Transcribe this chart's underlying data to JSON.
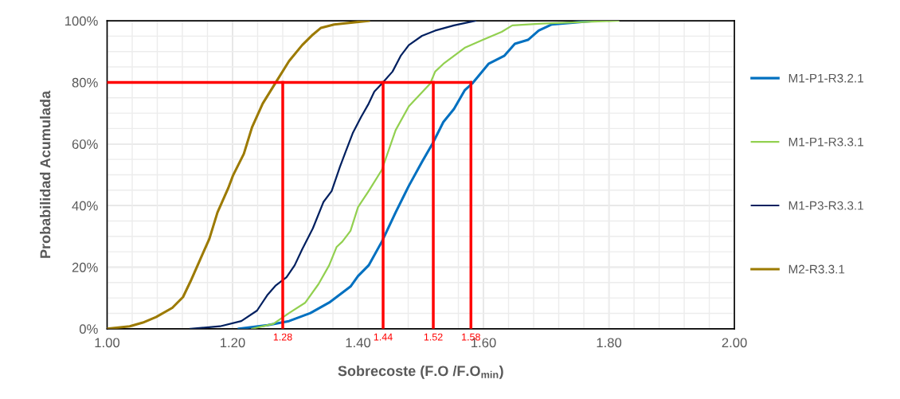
{
  "chart_data": {
    "type": "line",
    "xlabel": "Sobrecoste (F.O /F.O$_{min}$)",
    "ylabel": "Probabilidad Acumulada",
    "xlim": [
      1.0,
      2.0
    ],
    "ylim": [
      0,
      100
    ],
    "xticks": [
      {
        "value": 1.0,
        "label": "1.00"
      },
      {
        "value": 1.04,
        "label": null
      },
      {
        "value": 1.08,
        "label": null
      },
      {
        "value": 1.12,
        "label": null
      },
      {
        "value": 1.16,
        "label": null
      },
      {
        "value": 1.2,
        "label": "1.20"
      },
      {
        "value": 1.24,
        "label": null
      },
      {
        "value": 1.28,
        "label": null
      },
      {
        "value": 1.32,
        "label": null
      },
      {
        "value": 1.36,
        "label": null
      },
      {
        "value": 1.4,
        "label": "1.40"
      },
      {
        "value": 1.44,
        "label": null
      },
      {
        "value": 1.48,
        "label": null
      },
      {
        "value": 1.52,
        "label": null
      },
      {
        "value": 1.56,
        "label": null
      },
      {
        "value": 1.6,
        "label": "1.60"
      },
      {
        "value": 1.64,
        "label": null
      },
      {
        "value": 1.68,
        "label": null
      },
      {
        "value": 1.72,
        "label": null
      },
      {
        "value": 1.76,
        "label": null
      },
      {
        "value": 1.8,
        "label": "1.80"
      },
      {
        "value": 1.84,
        "label": null
      },
      {
        "value": 1.88,
        "label": null
      },
      {
        "value": 1.92,
        "label": null
      },
      {
        "value": 1.96,
        "label": null
      },
      {
        "value": 2.0,
        "label": "2.00"
      }
    ],
    "yticks": [
      {
        "value": 0,
        "label": "0%"
      },
      {
        "value": 5,
        "label": null
      },
      {
        "value": 10,
        "label": null
      },
      {
        "value": 15,
        "label": null
      },
      {
        "value": 20,
        "label": "20%"
      },
      {
        "value": 25,
        "label": null
      },
      {
        "value": 30,
        "label": null
      },
      {
        "value": 35,
        "label": null
      },
      {
        "value": 40,
        "label": "40%"
      },
      {
        "value": 45,
        "label": null
      },
      {
        "value": 50,
        "label": null
      },
      {
        "value": 55,
        "label": null
      },
      {
        "value": 60,
        "label": "60%"
      },
      {
        "value": 65,
        "label": null
      },
      {
        "value": 70,
        "label": null
      },
      {
        "value": 75,
        "label": null
      },
      {
        "value": 80,
        "label": "80%"
      },
      {
        "value": 85,
        "label": null
      },
      {
        "value": 90,
        "label": null
      },
      {
        "value": 95,
        "label": null
      },
      {
        "value": 100,
        "label": "100%"
      }
    ],
    "grid": true,
    "legend": "right",
    "marker": "none",
    "line_style": "solid",
    "series": [
      {
        "name": "M1-P1-R3.2.1",
        "color": "#0070c0",
        "x": [
          1.21,
          1.256,
          1.29,
          1.324,
          1.354,
          1.388,
          1.4,
          1.417,
          1.438,
          1.46,
          1.481,
          1.502,
          1.519,
          1.536,
          1.553,
          1.57,
          1.582,
          1.608,
          1.633,
          1.65,
          1.671,
          1.688,
          1.709,
          1.777
        ],
        "values": [
          0,
          1.2,
          2.5,
          5.1,
          8.5,
          13.7,
          17.1,
          20.6,
          28.3,
          37.8,
          46.4,
          54.2,
          60.2,
          67.1,
          71.4,
          77.4,
          79.6,
          86,
          88.6,
          92.5,
          93.8,
          96.8,
          98.8,
          100
        ]
      },
      {
        "name": "M1-P1-R3.3.1",
        "color": "#92d050",
        "x": [
          1.231,
          1.265,
          1.29,
          1.316,
          1.337,
          1.354,
          1.366,
          1.375,
          1.388,
          1.4,
          1.417,
          1.438,
          1.46,
          1.481,
          1.515,
          1.523,
          1.536,
          1.57,
          1.599,
          1.629,
          1.646,
          1.693,
          1.815
        ],
        "values": [
          0,
          1.6,
          5.1,
          8.5,
          14.5,
          20.6,
          26.6,
          28.3,
          31.8,
          39.5,
          44.7,
          51.6,
          64.5,
          72.2,
          79.6,
          83.5,
          86,
          91.2,
          93.8,
          96.4,
          98.5,
          99.1,
          100
        ]
      },
      {
        "name": "M1-P3-R3.3.1",
        "color": "#002060",
        "x": [
          1.133,
          1.18,
          1.214,
          1.239,
          1.256,
          1.269,
          1.286,
          1.299,
          1.311,
          1.328,
          1.345,
          1.358,
          1.371,
          1.379,
          1.392,
          1.405,
          1.417,
          1.426,
          1.438,
          1.455,
          1.468,
          1.481,
          1.502,
          1.523,
          1.553,
          1.587
        ],
        "values": [
          0,
          0.8,
          2.5,
          5.9,
          11.1,
          14.1,
          16.7,
          20.6,
          25.8,
          32.6,
          41.2,
          44.7,
          52.5,
          56.8,
          63.7,
          68.8,
          73.1,
          77,
          79.6,
          83.5,
          88.6,
          92.1,
          95.1,
          96.8,
          98.5,
          100
        ]
      },
      {
        "name": "M2-R3.3.1",
        "color": "#9c7a00",
        "x": [
          1.0,
          1.036,
          1.057,
          1.078,
          1.104,
          1.121,
          1.133,
          1.146,
          1.163,
          1.176,
          1.193,
          1.201,
          1.218,
          1.231,
          1.248,
          1.269,
          1.29,
          1.311,
          1.328,
          1.341,
          1.362,
          1.417
        ],
        "values": [
          0,
          0.8,
          2,
          3.8,
          6.8,
          10.3,
          15.4,
          21.4,
          29.2,
          37.8,
          45.6,
          49.9,
          56.8,
          65.4,
          73.1,
          80,
          86.9,
          92.1,
          95.5,
          97.7,
          98.8,
          100
        ]
      },
      {
        "color": "#ff0000",
        "x": [
          1.0,
          1.58
        ],
        "values": [
          80,
          80
        ]
      },
      {
        "color": "#ff0000",
        "x": [
          1.28,
          1.28
        ],
        "values": [
          0,
          80
        ]
      },
      {
        "color": "#ff0000",
        "x": [
          1.44,
          1.44
        ],
        "values": [
          0,
          80
        ]
      },
      {
        "color": "#ff0000",
        "x": [
          1.52,
          1.52
        ],
        "values": [
          0,
          80
        ]
      },
      {
        "color": "#ff0000",
        "x": [
          1.58,
          1.58
        ],
        "values": [
          0,
          80
        ]
      }
    ],
    "annotations": [
      {
        "text": "1.28",
        "x": 1.28,
        "y": 0
      },
      {
        "text": "1.44",
        "x": 1.44,
        "y": 0
      },
      {
        "text": "1.52",
        "x": 1.52,
        "y": 0
      },
      {
        "text": "1.58",
        "x": 1.58,
        "y": 0
      }
    ]
  }
}
